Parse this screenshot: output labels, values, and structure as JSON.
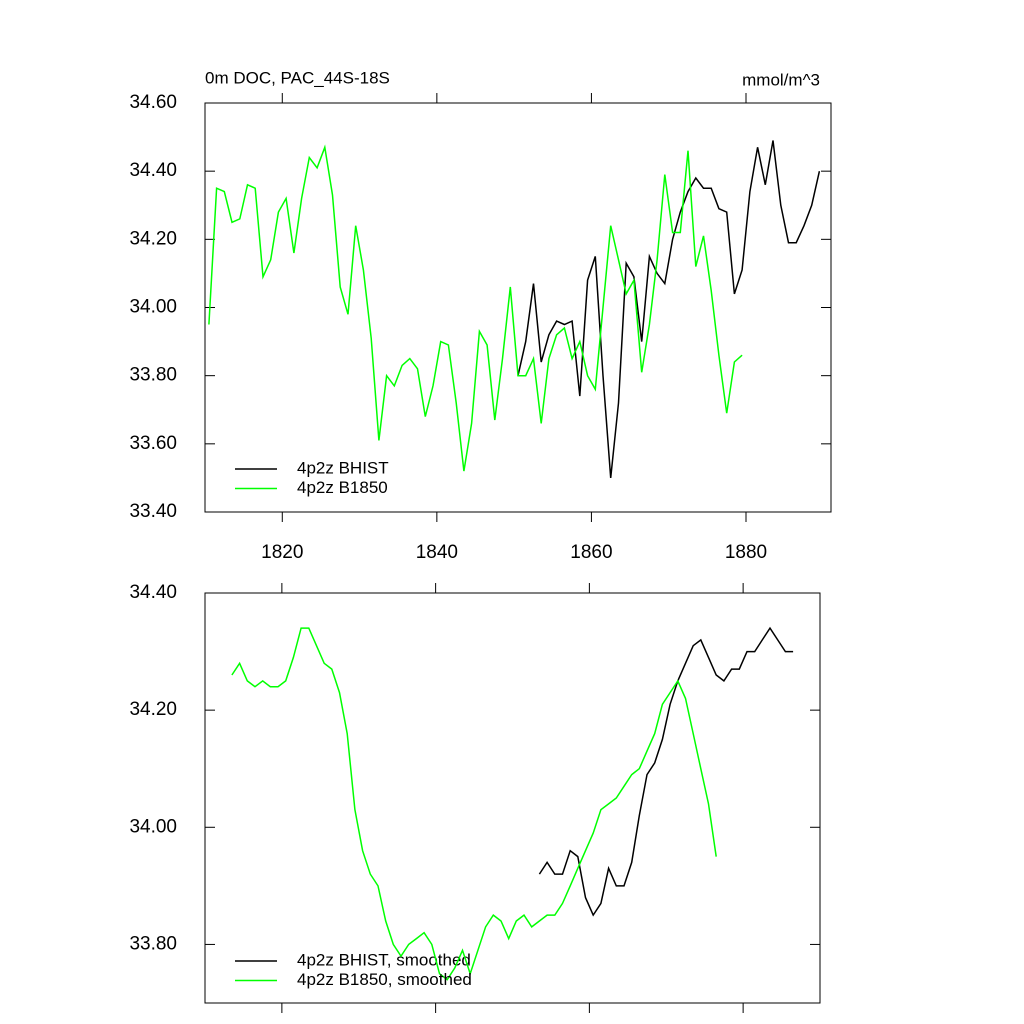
{
  "chart_data": [
    {
      "type": "line",
      "title": "0m DOC, PAC_44S-18S",
      "units": "mmol/m^3",
      "xlim": [
        1810,
        1891
      ],
      "xticks": [
        1820,
        1840,
        1860,
        1880
      ],
      "ylim": [
        33.4,
        34.6
      ],
      "yticks": [
        {
          "value": 33.4,
          "label": "33.40"
        },
        {
          "value": 33.6,
          "label": "33.60"
        },
        {
          "value": 33.8,
          "label": "33.80"
        },
        {
          "value": 34.0,
          "label": "34.00"
        },
        {
          "value": 34.2,
          "label": "34.20"
        },
        {
          "value": 34.4,
          "label": "34.40"
        },
        {
          "value": 34.6,
          "label": "34.60"
        }
      ],
      "series": [
        {
          "name": "4p2z BHIST",
          "color": "#000000",
          "x": [
            1850.5,
            1851.5,
            1852.5,
            1853.5,
            1854.5,
            1855.5,
            1856.5,
            1857.5,
            1858.5,
            1859.5,
            1860.5,
            1861.5,
            1862.5,
            1863.5,
            1864.5,
            1865.5,
            1866.5,
            1867.5,
            1868.5,
            1869.5,
            1870.5,
            1871.5,
            1872.5,
            1873.5,
            1874.5,
            1875.5,
            1876.5,
            1877.5,
            1878.5,
            1879.5,
            1880.5,
            1881.5,
            1882.5,
            1883.5,
            1884.5,
            1885.5,
            1886.5,
            1887.5,
            1888.5,
            1889.5
          ],
          "values": [
            33.8,
            33.9,
            34.07,
            33.84,
            33.92,
            33.96,
            33.95,
            33.96,
            33.74,
            34.08,
            34.15,
            33.8,
            33.5,
            33.72,
            34.13,
            34.09,
            33.9,
            34.15,
            34.1,
            34.07,
            34.2,
            34.28,
            34.34,
            34.38,
            34.35,
            34.35,
            34.29,
            34.28,
            34.04,
            34.11,
            34.34,
            34.47,
            34.36,
            34.49,
            34.3,
            34.19,
            34.19,
            34.24,
            34.3,
            34.4
          ]
        },
        {
          "name": "4p2z B1850",
          "color": "#00ff00",
          "x": [
            1810.5,
            1811.5,
            1812.5,
            1813.5,
            1814.5,
            1815.5,
            1816.5,
            1817.5,
            1818.5,
            1819.5,
            1820.5,
            1821.5,
            1822.5,
            1823.5,
            1824.5,
            1825.5,
            1826.5,
            1827.5,
            1828.5,
            1829.5,
            1830.5,
            1831.5,
            1832.5,
            1833.5,
            1834.5,
            1835.5,
            1836.5,
            1837.5,
            1838.5,
            1839.5,
            1840.5,
            1841.5,
            1842.5,
            1843.5,
            1844.5,
            1845.5,
            1846.5,
            1847.5,
            1848.5,
            1849.5,
            1850.5,
            1851.5,
            1852.5,
            1853.5,
            1854.5,
            1855.5,
            1856.5,
            1857.5,
            1858.5,
            1859.5,
            1860.5,
            1861.5,
            1862.5,
            1863.5,
            1864.5,
            1865.5,
            1866.5,
            1867.5,
            1868.5,
            1869.5,
            1870.5,
            1871.5,
            1872.5,
            1873.5,
            1874.5,
            1875.5,
            1876.5,
            1877.5,
            1878.5,
            1879.5
          ],
          "values": [
            33.95,
            34.35,
            34.34,
            34.25,
            34.26,
            34.36,
            34.35,
            34.09,
            34.14,
            34.28,
            34.32,
            34.16,
            34.32,
            34.44,
            34.41,
            34.47,
            34.33,
            34.06,
            33.98,
            34.24,
            34.11,
            33.91,
            33.61,
            33.8,
            33.77,
            33.83,
            33.85,
            33.82,
            33.68,
            33.77,
            33.9,
            33.89,
            33.72,
            33.52,
            33.66,
            33.93,
            33.89,
            33.67,
            33.85,
            34.06,
            33.8,
            33.8,
            33.85,
            33.66,
            33.85,
            33.92,
            33.94,
            33.85,
            33.9,
            33.8,
            33.76,
            34.0,
            34.24,
            34.14,
            34.04,
            34.08,
            33.81,
            33.95,
            34.14,
            34.39,
            34.22,
            34.22,
            34.46,
            34.12,
            34.21,
            34.05,
            33.86,
            33.69,
            33.84,
            33.86
          ]
        }
      ]
    },
    {
      "type": "line",
      "xlim": [
        1810,
        1890
      ],
      "xticks": [
        1820,
        1840,
        1860,
        1880
      ],
      "ylim": [
        33.7,
        34.4
      ],
      "yticks": [
        {
          "value": 33.8,
          "label": "33.80"
        },
        {
          "value": 34.0,
          "label": "34.00"
        },
        {
          "value": 34.2,
          "label": "34.20"
        },
        {
          "value": 34.4,
          "label": "34.40"
        }
      ],
      "series": [
        {
          "name": "4p2z BHIST, smoothed",
          "color": "#000000",
          "x": [
            1853.5,
            1854.5,
            1855.5,
            1856.5,
            1857.5,
            1858.5,
            1859.5,
            1860.5,
            1861.5,
            1862.5,
            1863.5,
            1864.5,
            1865.5,
            1866.5,
            1867.5,
            1868.5,
            1869.5,
            1870.5,
            1871.5,
            1872.5,
            1873.5,
            1874.5,
            1875.5,
            1876.5,
            1877.5,
            1878.5,
            1879.5,
            1880.5,
            1881.5,
            1882.5,
            1883.5,
            1884.5,
            1885.5,
            1886.5
          ],
          "values": [
            33.92,
            33.94,
            33.92,
            33.92,
            33.96,
            33.95,
            33.88,
            33.85,
            33.87,
            33.93,
            33.9,
            33.9,
            33.94,
            34.02,
            34.09,
            34.11,
            34.15,
            34.21,
            34.25,
            34.28,
            34.31,
            34.32,
            34.29,
            34.26,
            34.25,
            34.27,
            34.27,
            34.3,
            34.3,
            34.32,
            34.34,
            34.32,
            34.3,
            34.3
          ]
        },
        {
          "name": "4p2z B1850, smoothed",
          "color": "#00ff00",
          "x": [
            1813.5,
            1814.5,
            1815.5,
            1816.5,
            1817.5,
            1818.5,
            1819.5,
            1820.5,
            1821.5,
            1822.5,
            1823.5,
            1824.5,
            1825.5,
            1826.5,
            1827.5,
            1828.5,
            1829.5,
            1830.5,
            1831.5,
            1832.5,
            1833.5,
            1834.5,
            1835.5,
            1836.5,
            1837.5,
            1838.5,
            1839.5,
            1840.5,
            1841.5,
            1842.5,
            1843.5,
            1844.5,
            1845.5,
            1846.5,
            1847.5,
            1848.5,
            1849.5,
            1850.5,
            1851.5,
            1852.5,
            1853.5,
            1854.5,
            1855.5,
            1856.5,
            1857.5,
            1858.5,
            1859.5,
            1860.5,
            1861.5,
            1862.5,
            1863.5,
            1864.5,
            1865.5,
            1866.5,
            1867.5,
            1868.5,
            1869.5,
            1870.5,
            1871.5,
            1872.5,
            1873.5,
            1874.5,
            1875.5,
            1876.5
          ],
          "values": [
            34.26,
            34.28,
            34.25,
            34.24,
            34.25,
            34.24,
            34.24,
            34.25,
            34.29,
            34.34,
            34.34,
            34.31,
            34.28,
            34.27,
            34.23,
            34.16,
            34.03,
            33.96,
            33.92,
            33.9,
            33.84,
            33.8,
            33.78,
            33.8,
            33.81,
            33.82,
            33.8,
            33.75,
            33.74,
            33.76,
            33.79,
            33.75,
            33.79,
            33.83,
            33.85,
            33.84,
            33.81,
            33.84,
            33.85,
            33.83,
            33.84,
            33.85,
            33.85,
            33.87,
            33.9,
            33.93,
            33.96,
            33.99,
            34.03,
            34.04,
            34.05,
            34.07,
            34.09,
            34.1,
            34.13,
            34.16,
            34.21,
            34.23,
            34.25,
            34.22,
            34.16,
            34.1,
            34.04,
            33.95
          ]
        }
      ]
    }
  ]
}
